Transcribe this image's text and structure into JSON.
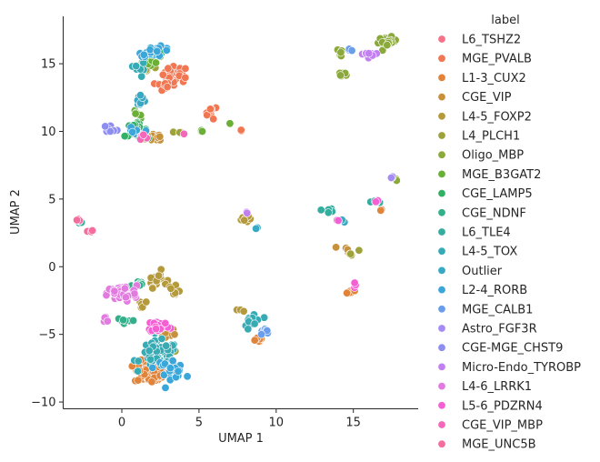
{
  "chart_data": {
    "type": "scatter",
    "xlabel": "UMAP 1",
    "ylabel": "UMAP 2",
    "xlim": [
      -3.8,
      19.2
    ],
    "ylim": [
      -10.5,
      18.5
    ],
    "xticks": [
      0,
      5,
      10,
      15
    ],
    "yticks": [
      -10,
      -5,
      0,
      5,
      10,
      15
    ],
    "x_tick_labels": [
      "0",
      "5",
      "10",
      "15"
    ],
    "y_tick_labels": [
      "−10",
      "−5",
      "0",
      "5",
      "10",
      "15"
    ],
    "grid": false,
    "legend": {
      "title": "label",
      "placement": "outside-right"
    },
    "series": [
      {
        "name": "L6_TSHZ2",
        "color": "#f77189",
        "clusters": [
          {
            "cx": 3.0,
            "cy": 13.6,
            "sx": 0.5,
            "sy": 0.3,
            "n": 6
          }
        ]
      },
      {
        "name": "MGE_PVALB",
        "color": "#f17753",
        "clusters": [
          {
            "cx": 3.5,
            "cy": 14.2,
            "sx": 0.7,
            "sy": 0.5,
            "n": 35
          },
          {
            "cx": 5.8,
            "cy": 11.4,
            "sx": 0.3,
            "sy": 0.4,
            "n": 8
          },
          {
            "cx": 7.8,
            "cy": 10.1,
            "sx": 0.15,
            "sy": 0.1,
            "n": 4
          },
          {
            "cx": 2.6,
            "cy": 13.3,
            "sx": 0.4,
            "sy": 0.3,
            "n": 10
          }
        ]
      },
      {
        "name": "L1-3_CUX2",
        "color": "#e2833a",
        "clusters": [
          {
            "cx": 1.9,
            "cy": -7.8,
            "sx": 0.9,
            "sy": 0.7,
            "n": 70
          },
          {
            "cx": 8.8,
            "cy": -5.4,
            "sx": 0.3,
            "sy": 0.2,
            "n": 8
          },
          {
            "cx": 14.8,
            "cy": -1.8,
            "sx": 0.4,
            "sy": 0.2,
            "n": 7
          },
          {
            "cx": 16.8,
            "cy": 4.2,
            "sx": 0.15,
            "sy": 0.2,
            "n": 3
          }
        ]
      },
      {
        "name": "CGE_VIP",
        "color": "#c6913a",
        "clusters": [
          {
            "cx": 2.3,
            "cy": 9.6,
            "sx": 0.6,
            "sy": 0.3,
            "n": 14
          },
          {
            "cx": 2.8,
            "cy": -5.0,
            "sx": 0.6,
            "sy": 0.4,
            "n": 10
          },
          {
            "cx": 14.5,
            "cy": 1.3,
            "sx": 0.3,
            "sy": 0.2,
            "n": 4
          }
        ]
      },
      {
        "name": "L4-5_FOXP2",
        "color": "#b49a3b",
        "clusters": [
          {
            "cx": 2.3,
            "cy": -0.9,
            "sx": 0.5,
            "sy": 0.5,
            "n": 18
          },
          {
            "cx": 3.5,
            "cy": -1.9,
            "sx": 0.3,
            "sy": 0.4,
            "n": 8
          },
          {
            "cx": 8.0,
            "cy": 3.6,
            "sx": 0.3,
            "sy": 0.3,
            "n": 8
          },
          {
            "cx": 1.2,
            "cy": -2.8,
            "sx": 0.3,
            "sy": 0.4,
            "n": 6
          },
          {
            "cx": 7.7,
            "cy": -3.1,
            "sx": 0.2,
            "sy": 0.2,
            "n": 3
          }
        ]
      },
      {
        "name": "L4_PLCH1",
        "color": "#9ea23a",
        "clusters": [
          {
            "cx": 1.5,
            "cy": 14.8,
            "sx": 0.4,
            "sy": 0.6,
            "n": 14
          },
          {
            "cx": 15.0,
            "cy": 1.0,
            "sx": 0.3,
            "sy": 0.2,
            "n": 4
          },
          {
            "cx": 3.6,
            "cy": 10.0,
            "sx": 0.3,
            "sy": 0.1,
            "n": 3
          },
          {
            "cx": 3.2,
            "cy": -6.2,
            "sx": 0.4,
            "sy": 0.3,
            "n": 6
          }
        ]
      },
      {
        "name": "Oligo_MBP",
        "color": "#8ba83a",
        "clusters": [
          {
            "cx": 17.2,
            "cy": 16.6,
            "sx": 0.5,
            "sy": 0.3,
            "n": 22
          },
          {
            "cx": 14.3,
            "cy": 14.2,
            "sx": 0.3,
            "sy": 0.4,
            "n": 6
          },
          {
            "cx": 14.2,
            "cy": 15.8,
            "sx": 0.2,
            "sy": 0.3,
            "n": 5
          },
          {
            "cx": 17.8,
            "cy": 6.5,
            "sx": 0.1,
            "sy": 0.1,
            "n": 2
          }
        ]
      },
      {
        "name": "MGE_B3GAT2",
        "color": "#6bb036",
        "clusters": [
          {
            "cx": 2.0,
            "cy": 15.5,
            "sx": 0.5,
            "sy": 0.4,
            "n": 12
          },
          {
            "cx": 1.0,
            "cy": 11.2,
            "sx": 0.4,
            "sy": 0.3,
            "n": 6
          },
          {
            "cx": 7.1,
            "cy": 10.6,
            "sx": 0.1,
            "sy": 0.1,
            "n": 1
          },
          {
            "cx": 5.1,
            "cy": 10.0,
            "sx": 0.4,
            "sy": 0.1,
            "n": 3
          }
        ]
      },
      {
        "name": "CGE_LAMP5",
        "color": "#32b166",
        "clusters": [
          {
            "cx": 0.9,
            "cy": 10.1,
            "sx": 0.6,
            "sy": 0.4,
            "n": 24
          },
          {
            "cx": 2.3,
            "cy": 15.8,
            "sx": 0.4,
            "sy": 0.2,
            "n": 6
          }
        ]
      },
      {
        "name": "CGE_NDNF",
        "color": "#34af8a",
        "clusters": [
          {
            "cx": 1.0,
            "cy": -1.3,
            "sx": 0.4,
            "sy": 0.3,
            "n": 8
          },
          {
            "cx": 0.3,
            "cy": -4.0,
            "sx": 0.6,
            "sy": 0.3,
            "n": 8
          }
        ]
      },
      {
        "name": "L6_TLE4",
        "color": "#35ac9e",
        "clusters": [
          {
            "cx": 13.4,
            "cy": 4.2,
            "sx": 0.4,
            "sy": 0.3,
            "n": 6
          },
          {
            "cx": 16.5,
            "cy": 4.8,
            "sx": 0.3,
            "sy": 0.2,
            "n": 5
          },
          {
            "cx": -2.6,
            "cy": 3.3,
            "sx": 0.3,
            "sy": 0.1,
            "n": 3
          }
        ]
      },
      {
        "name": "L4-5_TOX",
        "color": "#37abb4",
        "clusters": [
          {
            "cx": 2.4,
            "cy": -6.5,
            "sx": 1.0,
            "sy": 0.8,
            "n": 80
          },
          {
            "cx": 8.5,
            "cy": -4.0,
            "sx": 0.5,
            "sy": 0.6,
            "n": 16
          },
          {
            "cx": 1.2,
            "cy": 14.5,
            "sx": 0.3,
            "sy": 0.5,
            "n": 8
          }
        ]
      },
      {
        "name": "Outlier",
        "color": "#38a9c5",
        "clusters": [
          {
            "cx": 1.2,
            "cy": 12.5,
            "sx": 0.3,
            "sy": 0.6,
            "n": 8
          },
          {
            "cx": 8.7,
            "cy": 2.9,
            "sx": 0.1,
            "sy": 0.1,
            "n": 2
          },
          {
            "cx": 14.3,
            "cy": 3.4,
            "sx": 0.2,
            "sy": 0.1,
            "n": 3
          }
        ]
      },
      {
        "name": "L2-4_RORB",
        "color": "#3aa6da",
        "clusters": [
          {
            "cx": 2.2,
            "cy": 15.9,
            "sx": 0.9,
            "sy": 0.3,
            "n": 25
          },
          {
            "cx": 3.1,
            "cy": -7.5,
            "sx": 0.8,
            "sy": 0.6,
            "n": 25
          },
          {
            "cx": 0.8,
            "cy": 9.9,
            "sx": 0.4,
            "sy": 0.3,
            "n": 6
          }
        ]
      },
      {
        "name": "MGE_CALB1",
        "color": "#6a9eeb",
        "clusters": [
          {
            "cx": 9.2,
            "cy": -4.8,
            "sx": 0.3,
            "sy": 0.3,
            "n": 8
          },
          {
            "cx": 14.8,
            "cy": 16.0,
            "sx": 0.2,
            "sy": 0.1,
            "n": 3
          }
        ]
      },
      {
        "name": "Astro_FGF3R",
        "color": "#a48cf4",
        "clusters": [
          {
            "cx": 17.5,
            "cy": 6.6,
            "sx": 0.1,
            "sy": 0.1,
            "n": 3
          }
        ]
      },
      {
        "name": "CGE-MGE_CHST9",
        "color": "#8e8df0",
        "clusters": [
          {
            "cx": -0.7,
            "cy": 10.2,
            "sx": 0.4,
            "sy": 0.2,
            "n": 7
          }
        ]
      },
      {
        "name": "Micro-Endo_TYROBP",
        "color": "#c27ff2",
        "clusters": [
          {
            "cx": 15.8,
            "cy": 15.7,
            "sx": 0.5,
            "sy": 0.2,
            "n": 8
          },
          {
            "cx": 8.1,
            "cy": 4.0,
            "sx": 0.1,
            "sy": 0.1,
            "n": 2
          }
        ]
      },
      {
        "name": "L4-6_LRRK1",
        "color": "#e27ae0",
        "clusters": [
          {
            "cx": 0.0,
            "cy": -2.0,
            "sx": 0.8,
            "sy": 0.5,
            "n": 60
          },
          {
            "cx": -1.0,
            "cy": -3.9,
            "sx": 0.3,
            "sy": 0.3,
            "n": 4
          }
        ]
      },
      {
        "name": "L5-6_PDZRN4",
        "color": "#f45fd3",
        "clusters": [
          {
            "cx": 2.4,
            "cy": -4.4,
            "sx": 0.6,
            "sy": 0.4,
            "n": 25
          },
          {
            "cx": 15.1,
            "cy": -1.2,
            "sx": 0.2,
            "sy": 0.2,
            "n": 3
          },
          {
            "cx": 14.0,
            "cy": 3.4,
            "sx": 0.2,
            "sy": 0.2,
            "n": 2
          },
          {
            "cx": 16.4,
            "cy": 4.8,
            "sx": 0.2,
            "sy": 0.2,
            "n": 2
          }
        ]
      },
      {
        "name": "CGE_VIP_MBP",
        "color": "#f567b8",
        "clusters": [
          {
            "cx": 1.5,
            "cy": 9.6,
            "sx": 0.4,
            "sy": 0.2,
            "n": 5
          },
          {
            "cx": 4.0,
            "cy": 9.8,
            "sx": 0.1,
            "sy": 0.1,
            "n": 1
          }
        ]
      },
      {
        "name": "MGE_UNC5B",
        "color": "#f56d9f",
        "clusters": [
          {
            "cx": -2.8,
            "cy": 3.4,
            "sx": 0.2,
            "sy": 0.1,
            "n": 5
          },
          {
            "cx": -2.0,
            "cy": 2.6,
            "sx": 0.2,
            "sy": 0.2,
            "n": 3
          }
        ]
      }
    ]
  }
}
